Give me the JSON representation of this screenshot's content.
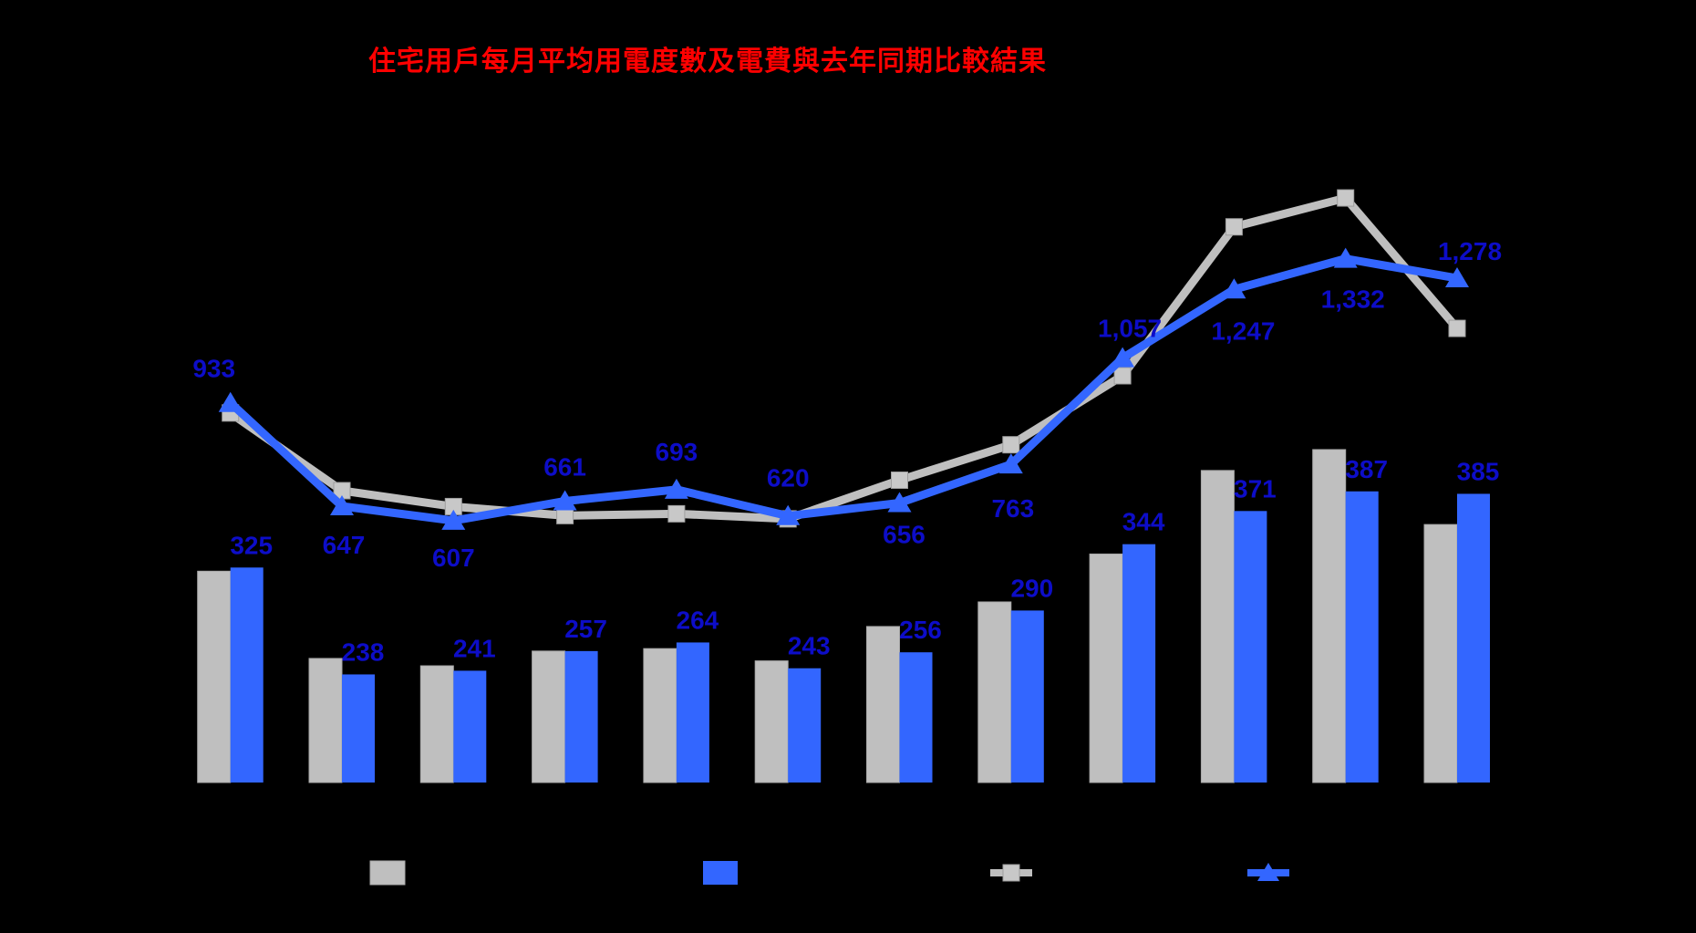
{
  "title": {
    "text": "住宅用戶每月平均用電度數及電費與去年同期比較結果",
    "color": "#FF0000"
  },
  "background_color": "#000000",
  "chart_data": {
    "type": "bar+line combo",
    "n_categories": 12,
    "category_axis_labels_visible": false,
    "grid": false,
    "data_label_color": "#0D0DC8",
    "series": [
      {
        "id": "bar-gray",
        "type": "bar",
        "color": "#BFBFBF",
        "values": [
          322,
          251,
          245,
          257,
          259,
          249,
          277,
          297,
          336,
          404,
          421,
          360
        ],
        "data_labels": null
      },
      {
        "id": "bar-blue",
        "type": "bar",
        "color": "#3366FF",
        "values": [
          325,
          238,
          241,
          257,
          264,
          243,
          256,
          290,
          344,
          371,
          387,
          385
        ],
        "data_labels": [
          "325",
          "238",
          "241",
          "257",
          "264",
          "243",
          "256",
          "290",
          "344",
          "371",
          "387",
          "385"
        ]
      },
      {
        "id": "line-gray",
        "type": "line",
        "marker": "square",
        "color": "#BFBFBF",
        "values": [
          905,
          690,
          646,
          621,
          626,
          612,
          719,
          817,
          1008,
          1420,
          1500,
          1139
        ],
        "data_labels": null
      },
      {
        "id": "line-blue",
        "type": "line",
        "marker": "triangle",
        "color": "#3366FF",
        "values": [
          933,
          647,
          607,
          661,
          693,
          620,
          656,
          763,
          1057,
          1247,
          1332,
          1278
        ],
        "data_labels": [
          "933",
          "647",
          "607",
          "661",
          "693",
          "620",
          "656",
          "763",
          "1,057",
          "1,247",
          "1,332",
          "1,278"
        ]
      }
    ],
    "axes": {
      "line_axis": {
        "min": 0,
        "labels_visible": false
      },
      "bar_axis": {
        "min": 150,
        "labels_visible": false
      }
    },
    "legend": {
      "position": "bottom",
      "labels_visible": false,
      "items": [
        {
          "swatch": "gray-box"
        },
        {
          "swatch": "blue-box"
        },
        {
          "swatch": "gray-line-square-marker"
        },
        {
          "swatch": "blue-line-triangle-marker"
        }
      ]
    }
  }
}
